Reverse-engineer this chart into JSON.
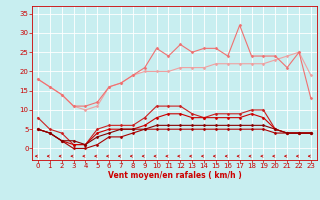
{
  "background_color": "#c8eef0",
  "grid_color": "#ffffff",
  "xlabel": "Vent moyen/en rafales ( km/h )",
  "xlabel_color": "#cc0000",
  "xlim": [
    -0.5,
    23.5
  ],
  "ylim": [
    -3,
    37
  ],
  "yticks": [
    0,
    5,
    10,
    15,
    20,
    25,
    30,
    35
  ],
  "xticks": [
    0,
    1,
    2,
    3,
    4,
    5,
    6,
    7,
    8,
    9,
    10,
    11,
    12,
    13,
    14,
    15,
    16,
    17,
    18,
    19,
    20,
    21,
    22,
    23
  ],
  "series": [
    {
      "y": [
        18,
        16,
        14,
        11,
        10,
        11,
        16,
        17,
        19,
        20,
        20,
        20,
        21,
        21,
        21,
        22,
        22,
        22,
        22,
        22,
        23,
        24,
        25,
        19
      ],
      "color": "#f0a0a0",
      "lw": 0.8,
      "marker": "D",
      "ms": 1.5
    },
    {
      "y": [
        18,
        16,
        14,
        11,
        11,
        12,
        16,
        17,
        19,
        21,
        26,
        24,
        27,
        25,
        26,
        26,
        24,
        32,
        24,
        24,
        24,
        21,
        25,
        13
      ],
      "color": "#f07070",
      "lw": 0.8,
      "marker": "D",
      "ms": 1.5
    },
    {
      "y": [
        8,
        5,
        4,
        1,
        1,
        5,
        6,
        6,
        6,
        8,
        11,
        11,
        11,
        9,
        8,
        9,
        9,
        9,
        10,
        10,
        5,
        4,
        4,
        4
      ],
      "color": "#cc2020",
      "lw": 0.8,
      "marker": "D",
      "ms": 1.5
    },
    {
      "y": [
        5,
        4,
        2,
        1,
        1,
        4,
        5,
        5,
        5,
        6,
        8,
        9,
        9,
        8,
        8,
        8,
        8,
        8,
        9,
        8,
        5,
        4,
        4,
        4
      ],
      "color": "#cc0000",
      "lw": 0.8,
      "marker": "D",
      "ms": 1.5
    },
    {
      "y": [
        5,
        4,
        2,
        0,
        0,
        1,
        3,
        3,
        4,
        5,
        5,
        5,
        5,
        5,
        5,
        5,
        5,
        5,
        5,
        5,
        4,
        4,
        4,
        4
      ],
      "color": "#aa0000",
      "lw": 0.8,
      "marker": "D",
      "ms": 1.5
    },
    {
      "y": [
        5,
        4,
        2,
        2,
        1,
        3,
        4,
        5,
        5,
        5,
        6,
        6,
        6,
        6,
        6,
        6,
        6,
        6,
        6,
        6,
        5,
        4,
        4,
        4
      ],
      "color": "#880000",
      "lw": 0.8,
      "marker": "D",
      "ms": 1.5
    }
  ],
  "label_fontsize": 5.5,
  "tick_fontsize": 5.0
}
